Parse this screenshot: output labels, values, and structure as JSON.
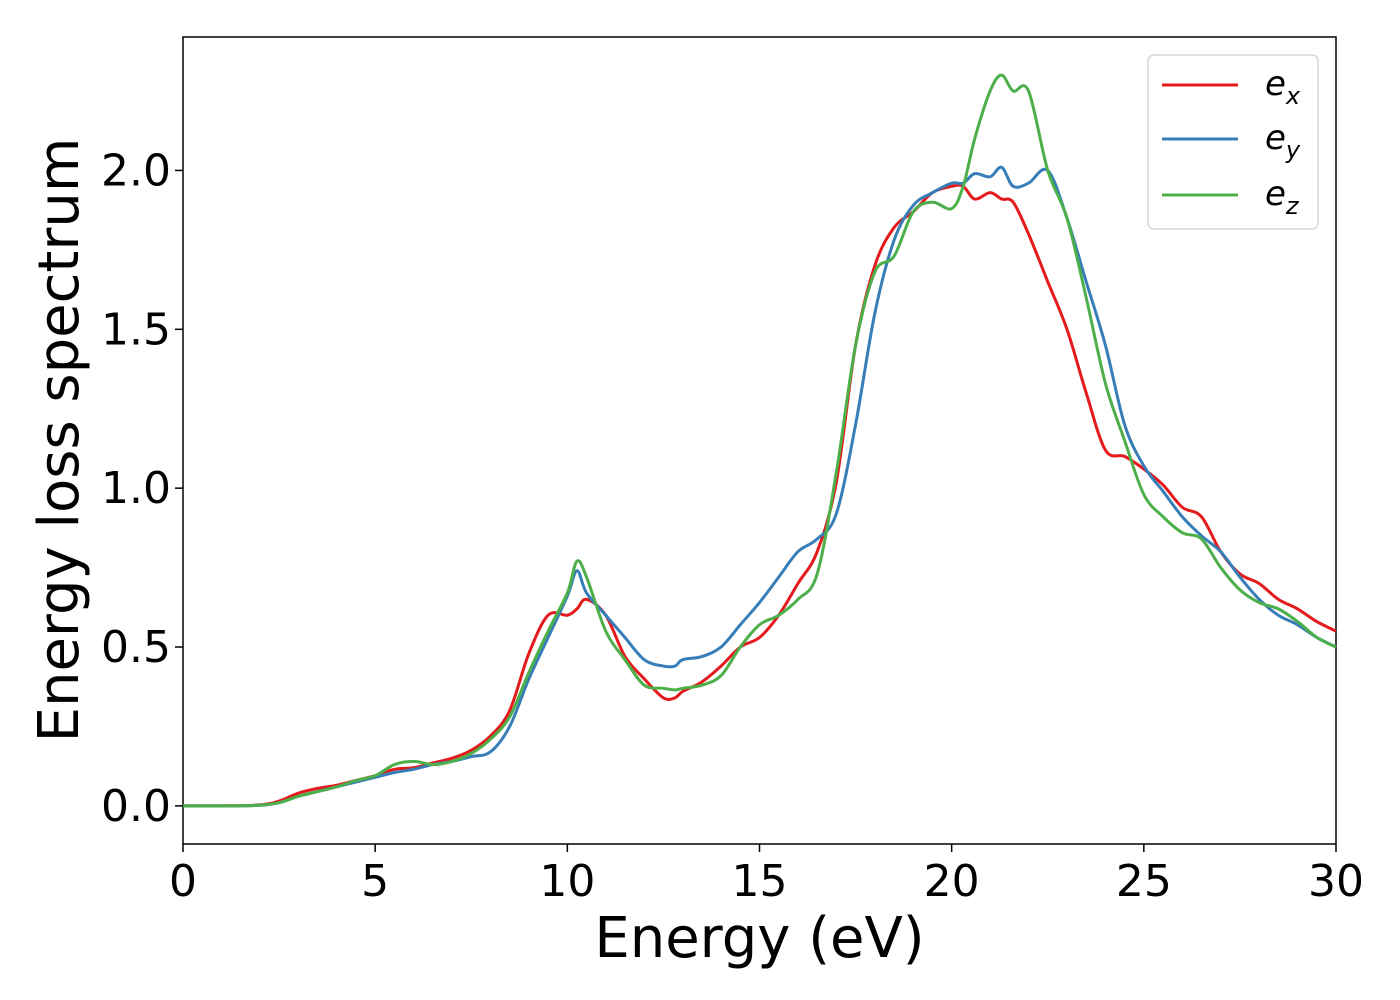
{
  "chart_data": {
    "type": "line",
    "title": "",
    "xlabel": "Energy (eV)",
    "ylabel": "Energy loss spectrum",
    "xlim": [
      0,
      30
    ],
    "ylim": [
      -0.12,
      2.42
    ],
    "xticks": [
      0,
      5,
      10,
      15,
      20,
      25,
      30
    ],
    "xtick_labels": [
      "0",
      "5",
      "10",
      "15",
      "20",
      "25",
      "30"
    ],
    "yticks": [
      0.0,
      0.5,
      1.0,
      1.5,
      2.0
    ],
    "ytick_labels": [
      "0.0",
      "0.5",
      "1.0",
      "1.5",
      "2.0"
    ],
    "grid": false,
    "legend_position": "top-right",
    "series": [
      {
        "name": "e_x",
        "legend_base": "e",
        "legend_sub": "x",
        "color": "#e41a1c",
        "x": [
          0,
          1,
          2,
          2.5,
          3,
          3.5,
          4,
          4.5,
          5,
          5.5,
          6,
          6.5,
          7,
          7.5,
          8,
          8.5,
          9,
          9.5,
          10,
          10.25,
          10.5,
          11,
          11.5,
          12,
          12.5,
          12.8,
          13,
          13.5,
          14,
          14.5,
          15,
          15.5,
          16,
          16.5,
          17,
          17.5,
          18,
          18.5,
          19,
          19.5,
          20,
          20.3,
          20.6,
          21,
          21.3,
          21.6,
          22,
          22.5,
          23,
          23.5,
          24,
          24.5,
          25,
          25.5,
          26,
          26.5,
          27,
          27.5,
          28,
          28.5,
          29,
          29.5,
          30
        ],
        "y": [
          0,
          0,
          0.003,
          0.015,
          0.04,
          0.055,
          0.065,
          0.08,
          0.095,
          0.115,
          0.12,
          0.135,
          0.15,
          0.175,
          0.22,
          0.3,
          0.48,
          0.6,
          0.6,
          0.62,
          0.65,
          0.6,
          0.47,
          0.4,
          0.34,
          0.34,
          0.36,
          0.39,
          0.44,
          0.5,
          0.53,
          0.6,
          0.7,
          0.8,
          1.02,
          1.45,
          1.7,
          1.82,
          1.87,
          1.93,
          1.95,
          1.95,
          1.91,
          1.93,
          1.91,
          1.9,
          1.8,
          1.65,
          1.5,
          1.3,
          1.12,
          1.1,
          1.06,
          1.01,
          0.94,
          0.91,
          0.8,
          0.73,
          0.7,
          0.65,
          0.62,
          0.58,
          0.55
        ]
      },
      {
        "name": "e_y",
        "legend_base": "e",
        "legend_sub": "y",
        "color": "#377eb8",
        "x": [
          0,
          1,
          2,
          2.5,
          3,
          3.5,
          4,
          4.5,
          5,
          5.5,
          6,
          6.5,
          7,
          7.5,
          8,
          8.5,
          9,
          9.5,
          10,
          10.25,
          10.5,
          11,
          11.5,
          12,
          12.5,
          12.8,
          13,
          13.5,
          14,
          14.5,
          15,
          15.5,
          16,
          16.5,
          17,
          17.5,
          18,
          18.5,
          19,
          19.5,
          20,
          20.3,
          20.6,
          21,
          21.3,
          21.6,
          22,
          22.5,
          23,
          23.5,
          24,
          24.5,
          25,
          25.5,
          26,
          26.5,
          27,
          27.5,
          28,
          28.5,
          29,
          29.5,
          30
        ],
        "y": [
          0,
          0,
          0.002,
          0.01,
          0.03,
          0.045,
          0.06,
          0.075,
          0.09,
          0.105,
          0.115,
          0.13,
          0.14,
          0.155,
          0.17,
          0.25,
          0.4,
          0.53,
          0.66,
          0.74,
          0.67,
          0.6,
          0.53,
          0.46,
          0.44,
          0.44,
          0.46,
          0.47,
          0.5,
          0.57,
          0.64,
          0.72,
          0.8,
          0.84,
          0.92,
          1.2,
          1.55,
          1.78,
          1.89,
          1.93,
          1.96,
          1.96,
          1.99,
          1.98,
          2.01,
          1.95,
          1.96,
          2.0,
          1.85,
          1.65,
          1.45,
          1.2,
          1.07,
          0.99,
          0.91,
          0.85,
          0.8,
          0.72,
          0.65,
          0.6,
          0.57,
          0.53,
          0.5
        ]
      },
      {
        "name": "e_z",
        "legend_base": "e",
        "legend_sub": "z",
        "color": "#4daf4a",
        "x": [
          0,
          1,
          2,
          2.5,
          3,
          3.5,
          4,
          4.5,
          5,
          5.5,
          6,
          6.5,
          7,
          7.5,
          8,
          8.5,
          9,
          9.5,
          10,
          10.25,
          10.5,
          11,
          11.5,
          12,
          12.5,
          12.8,
          13,
          13.5,
          14,
          14.5,
          15,
          15.5,
          16,
          16.5,
          17,
          17.5,
          18,
          18.5,
          19,
          19.5,
          20,
          20.3,
          20.6,
          21,
          21.3,
          21.6,
          22,
          22.5,
          23,
          23.5,
          24,
          24.5,
          25,
          25.5,
          26,
          26.5,
          27,
          27.5,
          28,
          28.5,
          29,
          29.5,
          30
        ],
        "y": [
          0,
          0,
          0.002,
          0.01,
          0.03,
          0.045,
          0.06,
          0.08,
          0.095,
          0.13,
          0.14,
          0.13,
          0.14,
          0.165,
          0.21,
          0.28,
          0.42,
          0.55,
          0.67,
          0.77,
          0.72,
          0.55,
          0.46,
          0.38,
          0.37,
          0.365,
          0.37,
          0.38,
          0.41,
          0.5,
          0.57,
          0.6,
          0.65,
          0.73,
          1.05,
          1.45,
          1.68,
          1.73,
          1.87,
          1.9,
          1.88,
          1.95,
          2.1,
          2.25,
          2.3,
          2.25,
          2.25,
          2.0,
          1.85,
          1.6,
          1.33,
          1.15,
          0.98,
          0.91,
          0.86,
          0.84,
          0.75,
          0.68,
          0.64,
          0.62,
          0.58,
          0.53,
          0.5
        ]
      }
    ]
  }
}
